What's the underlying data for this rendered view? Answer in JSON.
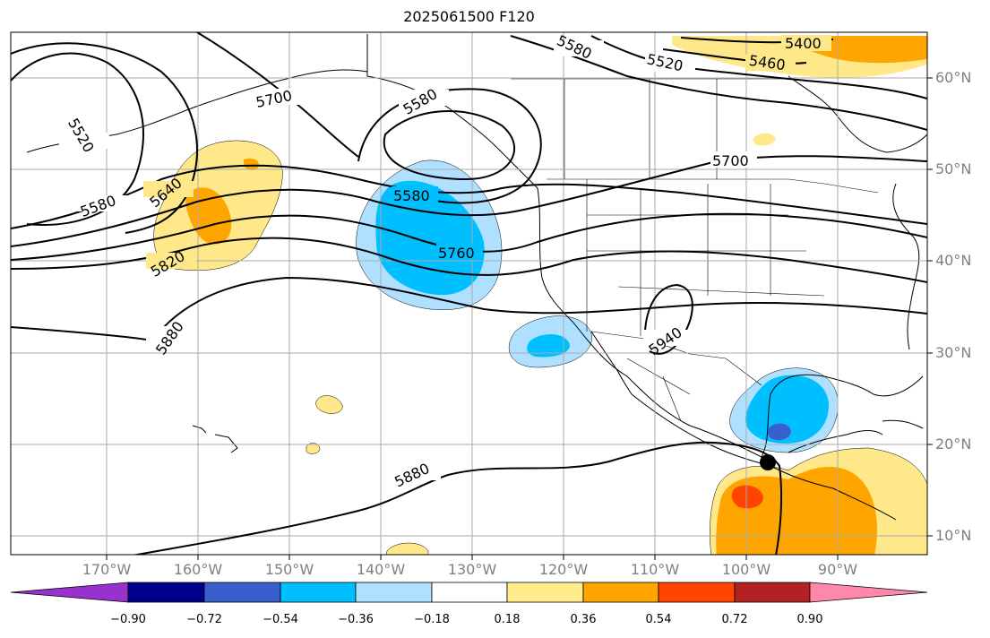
{
  "title": "2025061500 F120",
  "lon_labels": [
    "170°W",
    "160°W",
    "150°W",
    "140°W",
    "130°W",
    "120°W",
    "110°W",
    "100°W",
    "90°W"
  ],
  "lat_labels": [
    "60°N",
    "50°N",
    "40°N",
    "30°N",
    "20°N",
    "10°N"
  ],
  "contour_labels": [
    "5400",
    "5460",
    "5520",
    "5580",
    "5640",
    "5700",
    "5760",
    "5820",
    "5880",
    "5940"
  ],
  "colorbar": {
    "ticks": [
      "−0.90",
      "−0.72",
      "−0.54",
      "−0.36",
      "−0.18",
      "0.18",
      "0.36",
      "0.54",
      "0.72",
      "0.90"
    ],
    "colors": [
      "#9932cc",
      "#00008b",
      "#3a5fcd",
      "#00bfff",
      "#b0e0ff",
      "#ffffff",
      "#ffec8b",
      "#ffa500",
      "#ff4500",
      "#b22222",
      "#ff88aa"
    ]
  },
  "shading_colors": {
    "light_yellow": "#ffe88a",
    "orange": "#ffa500",
    "red_orange": "#ff4500",
    "light_blue": "#b0e0ff",
    "blue": "#00bfff",
    "dark_blue": "#3a5fcd"
  }
}
